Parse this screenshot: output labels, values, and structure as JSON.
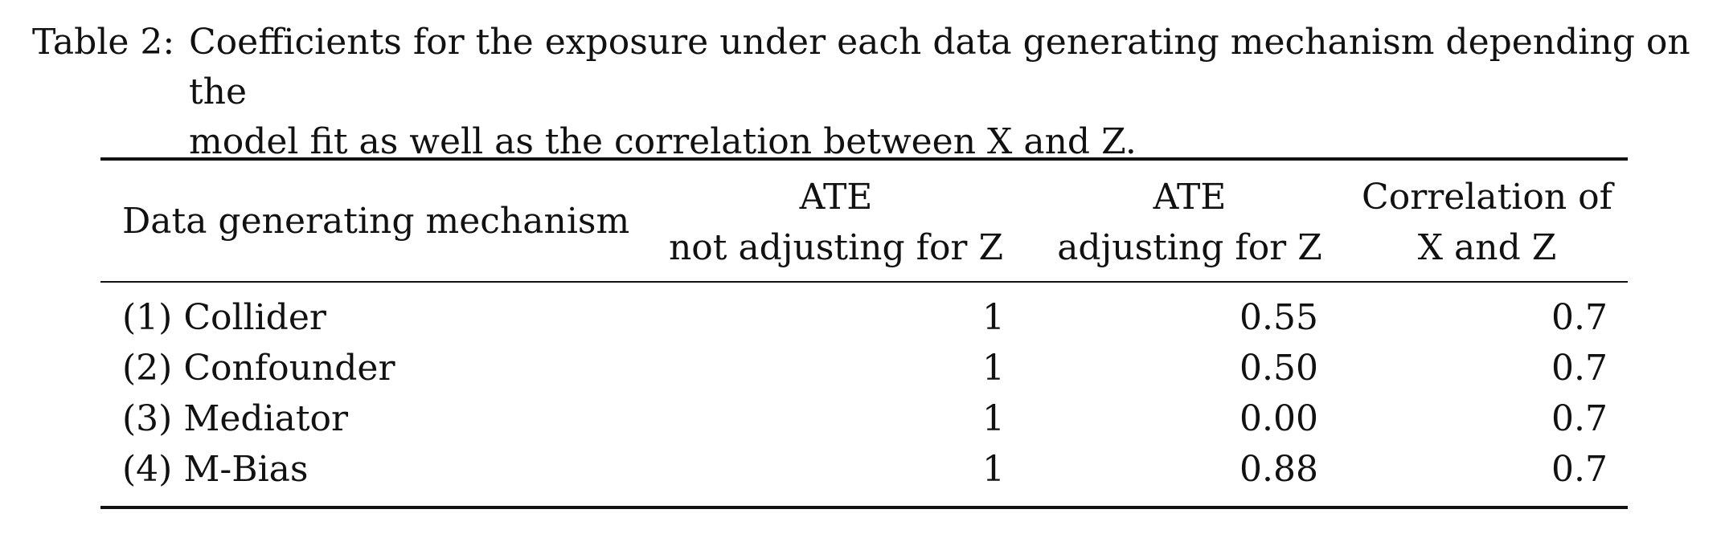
{
  "caption": {
    "label": "Table 2:",
    "line1": "Coefficients for the exposure under each data generating mechanism depending on the",
    "line2": "model fit as well as the correlation between X and Z."
  },
  "table": {
    "headers": {
      "col1": "Data generating mechanism",
      "col2_line1": "ATE",
      "col2_line2": "not adjusting for Z",
      "col3_line1": "ATE",
      "col3_line2": "adjusting for Z",
      "col4_line1": "Correlation of",
      "col4_line2": "X and Z"
    },
    "rows": [
      {
        "mechanism": "(1) Collider",
        "ate_unadj": "1",
        "ate_adj": "0.55",
        "corr": "0.7"
      },
      {
        "mechanism": "(2) Confounder",
        "ate_unadj": "1",
        "ate_adj": "0.50",
        "corr": "0.7"
      },
      {
        "mechanism": "(3) Mediator",
        "ate_unadj": "1",
        "ate_adj": "0.00",
        "corr": "0.7"
      },
      {
        "mechanism": "(4) M-Bias",
        "ate_unadj": "1",
        "ate_adj": "0.88",
        "corr": "0.7"
      }
    ]
  }
}
